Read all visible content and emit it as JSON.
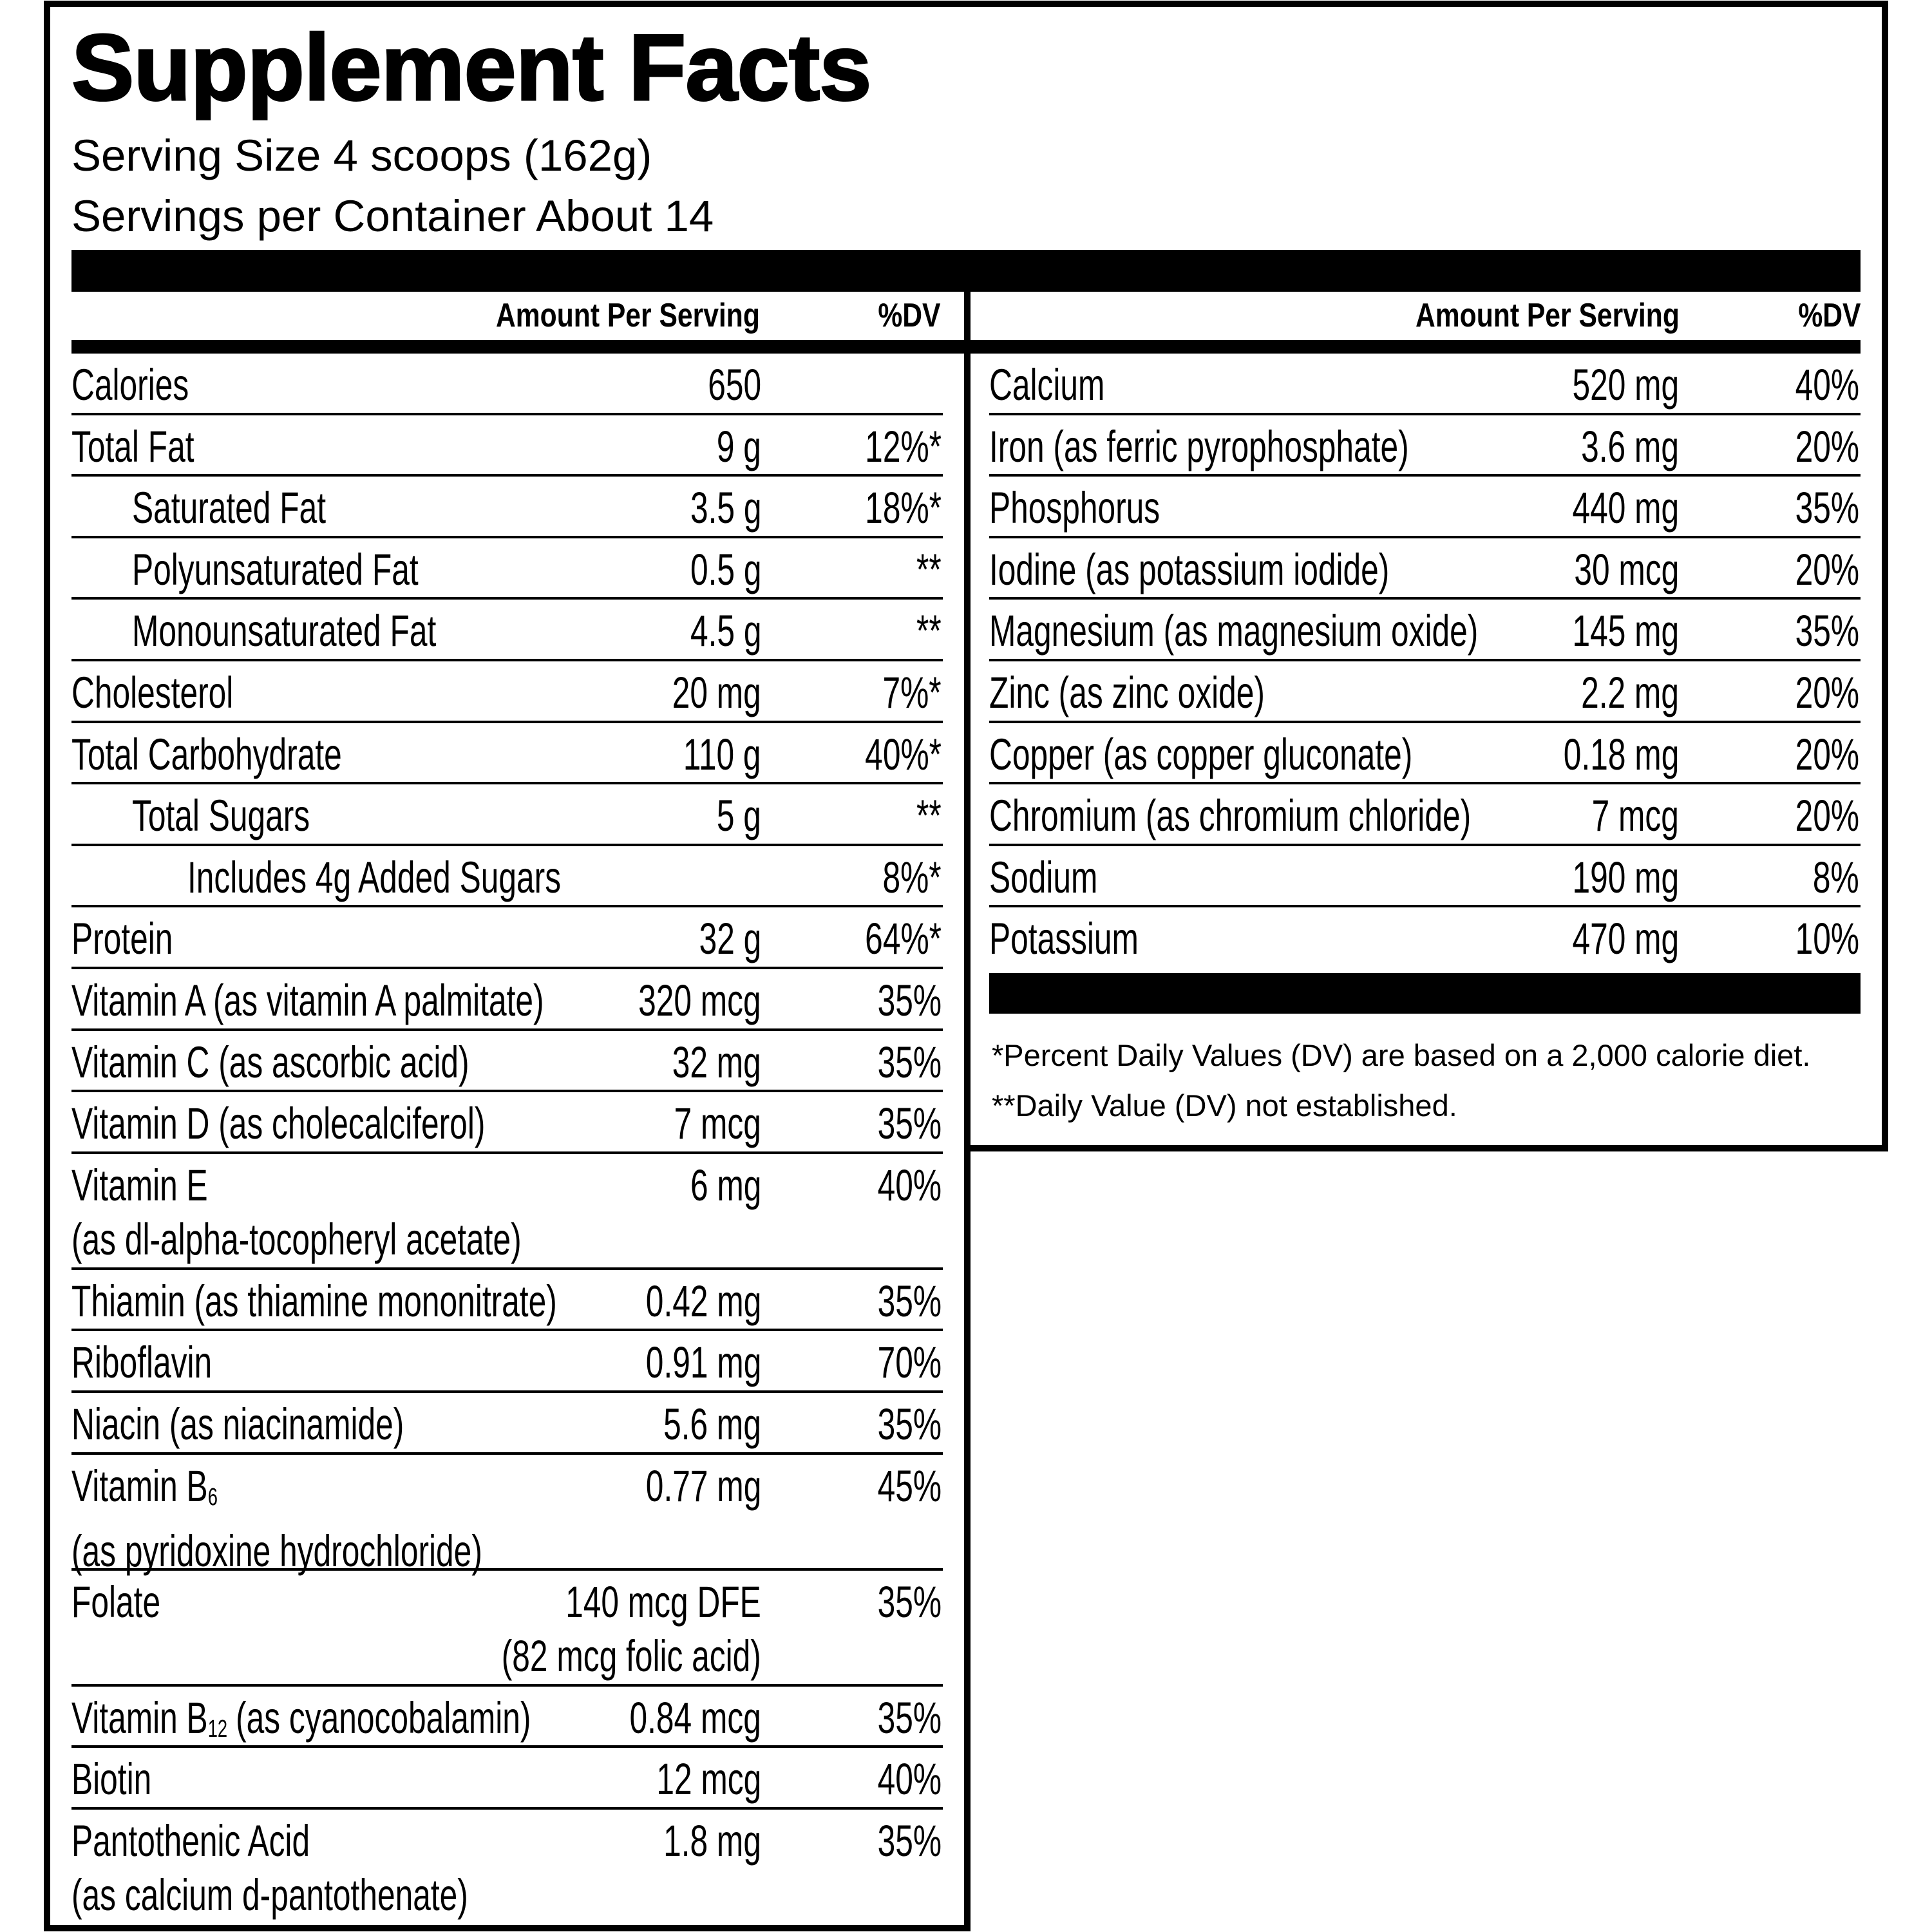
{
  "header": {
    "title": "Supplement Facts",
    "serving_size": "Serving Size 4 scoops (162g)",
    "servings_per_container": "Servings per Container About 14"
  },
  "columns": {
    "left": {
      "amount": "Amount Per Serving",
      "dv": "%DV"
    },
    "right": {
      "amount": "Amount Per Serving",
      "dv": "%DV"
    }
  },
  "left_rows": [
    {
      "name": "Calories",
      "amount": "650"
    },
    {
      "name": "Total Fat",
      "amount": "9 g",
      "dv": "12%*"
    },
    {
      "name": "Saturated Fat",
      "amount": "3.5 g",
      "dv": "18%*",
      "indent": 1
    },
    {
      "name": "Polyunsaturated Fat",
      "amount": "0.5 g",
      "dv": "**",
      "indent": 1
    },
    {
      "name": "Monounsaturated Fat",
      "amount": "4.5 g",
      "dv": "**",
      "indent": 1
    },
    {
      "name": "Cholesterol",
      "amount": "20 mg",
      "dv": "7%*"
    },
    {
      "name": "Total Carbohydrate",
      "amount": "110 g",
      "dv": "40%*"
    },
    {
      "name": "Total Sugars",
      "amount": "5 g",
      "dv": "**",
      "indent": 1
    },
    {
      "name": "Includes 4g Added Sugars",
      "dv": "8%*",
      "indent": 2
    },
    {
      "name": "Protein",
      "amount": "32 g",
      "dv": "64%*"
    },
    {
      "name": "Vitamin A (as vitamin A palmitate)",
      "amount": "320 mcg",
      "dv": "35%"
    },
    {
      "name": "Vitamin C (as ascorbic acid)",
      "amount": "32 mg",
      "dv": "35%"
    },
    {
      "name": "Vitamin D (as cholecalciferol)",
      "amount": "7 mcg",
      "dv": "35%"
    },
    {
      "name": "Vitamin E",
      "name_line2": "(as dl-alpha-tocopheryl acetate)",
      "amount": "6 mg",
      "dv": "40%"
    },
    {
      "name": "Thiamin (as thiamine mononitrate)",
      "amount": "0.42 mg",
      "dv": "35%"
    },
    {
      "name": "Riboflavin",
      "amount": "0.91 mg",
      "dv": "70%"
    },
    {
      "name": "Niacin (as niacinamide)",
      "amount": "5.6 mg",
      "dv": "35%"
    },
    {
      "name": "Vitamin B",
      "name_sub": "6",
      "name_line2": "(as pyridoxine hydrochloride)",
      "amount": "0.77 mg",
      "dv": "45%"
    },
    {
      "name": "Folate",
      "amount": "140 mcg DFE",
      "amount_line2": "(82 mcg folic acid)",
      "dv": "35%"
    },
    {
      "name": "Vitamin B",
      "name_sub": "12",
      "name_suffix": "(as cyanocobalamin)",
      "amount": "0.84 mcg",
      "dv": "35%"
    },
    {
      "name": "Biotin",
      "amount": "12 mcg",
      "dv": "40%"
    },
    {
      "name": "Pantothenic Acid",
      "name_line2": "(as calcium d-pantothenate)",
      "amount": "1.8 mg",
      "dv": "35%"
    }
  ],
  "right_rows": [
    {
      "name": "Calcium",
      "amount": "520 mg",
      "dv": "40%"
    },
    {
      "name": "Iron (as ferric pyrophosphate)",
      "amount": "3.6 mg",
      "dv": "20%"
    },
    {
      "name": "Phosphorus",
      "amount": "440 mg",
      "dv": "35%"
    },
    {
      "name": "Iodine (as potassium iodide)",
      "amount": "30 mcg",
      "dv": "20%"
    },
    {
      "name": "Magnesium (as magnesium oxide)",
      "amount": "145 mg",
      "dv": "35%"
    },
    {
      "name": "Zinc (as zinc oxide)",
      "amount": "2.2 mg",
      "dv": "20%"
    },
    {
      "name": "Copper (as copper gluconate)",
      "amount": "0.18 mg",
      "dv": "20%"
    },
    {
      "name": "Chromium (as chromium chloride)",
      "amount": "7 mcg",
      "dv": "20%"
    },
    {
      "name": "Sodium",
      "amount": "190 mg",
      "dv": "8%"
    },
    {
      "name": "Potassium",
      "amount": "470 mg",
      "dv": "10%"
    }
  ],
  "footnotes": [
    "*Percent Daily Values (DV) are based on a 2,000 calorie diet.",
    "**Daily Value (DV) not established."
  ]
}
